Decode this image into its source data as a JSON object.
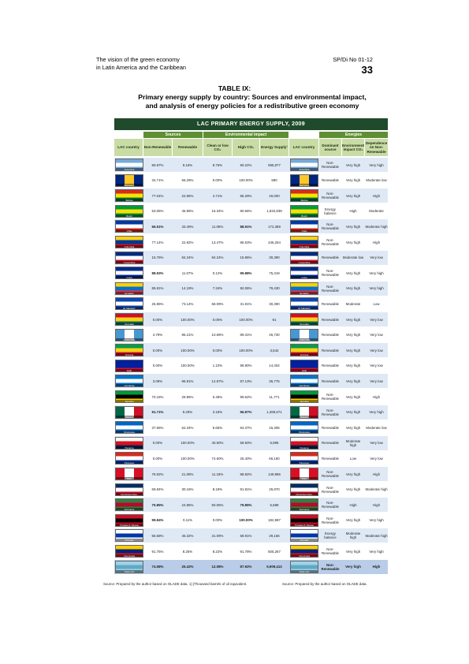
{
  "header": {
    "left_line1": "The vision of the green economy",
    "left_line2": "in Latin America and the Caribbean",
    "right": "SP/Di No 01-12",
    "page": "33"
  },
  "table": {
    "label": "TABLE IX:",
    "caption_line1": "Primary energy supply by country: Sources and environmental impact,",
    "caption_line2": "and analysis of energy policies for a redistributive green economy"
  },
  "figure": {
    "banner": "LAC PRIMARY ENERGY SUPPLY, 2009",
    "groups": {
      "sources": "Sources",
      "environmental": "Environmental impact",
      "energies": "Energies"
    },
    "columns": {
      "country": "LAC country",
      "nonrenew": "Non-Renewable",
      "renew": "Renewable",
      "clean": "Clean or low CO₂",
      "highco2": "High CO₂",
      "supply": "Energy Supply¹",
      "country2": "LAC country",
      "dominant": "Dominant source",
      "envimpact": "Environment impact CO₂",
      "dependence": "Dependence on Non-Renewable"
    },
    "colors": {
      "banner": "#1f4a2b",
      "group_header": "#5f8f34",
      "column_header": "#c9dca6",
      "row_a": "#dfe9f5",
      "row_b": "#ffffff"
    },
    "rows": [
      {
        "country": "Argentina",
        "flag": [
          "#75aadb",
          "#ffffff",
          "#75aadb"
        ],
        "nr": "90.87%",
        "r": "9.16%",
        "c": "9.76%",
        "h": "90.22%",
        "s": "595,877",
        "dom": "Non-Renewable",
        "env": "Very high",
        "dep": "Very high"
      },
      {
        "country": "Barbados",
        "flag": [
          "#00267f",
          "#ffc726",
          "#00267f"
        ],
        "vertical": true,
        "nr": "34.71%",
        "r": "66.29%",
        "c": "0.00%",
        "h": "100.00%",
        "s": "680",
        "dom": "Renewable",
        "env": "Very high",
        "dep": "Moderate low"
      },
      {
        "country": "Bolivia",
        "flag": [
          "#d52b1e",
          "#f9e300",
          "#007934"
        ],
        "nr": "77.04%",
        "r": "22.96%",
        "c": "4.71%",
        "h": "95.29%",
        "s": "40,000",
        "dom": "Non-Renewable",
        "env": "Very high",
        "dep": "High"
      },
      {
        "country": "Brazil",
        "flag": [
          "#009c3b",
          "#ffdf00",
          "#009c3b"
        ],
        "nr": "53.05%",
        "r": "46.95%",
        "c": "15.34%",
        "h": "80.66%",
        "s": "1,922,839",
        "dom": "Energy balance",
        "env": "High",
        "dep": "Moderate"
      },
      {
        "country": "Chile",
        "flag": [
          "#0039a6",
          "#ffffff",
          "#d52b1e"
        ],
        "nr": "66.51%",
        "r": "33.49%",
        "c": "11.09%",
        "h": "88.91%",
        "s": "172,389",
        "dom": "Non-Renewable",
        "env": "Very high",
        "dep": "Moderate high"
      },
      {
        "country": "Colombia",
        "flag": [
          "#fcd116",
          "#003893",
          "#ce1126"
        ],
        "nr": "77.14%",
        "r": "22.82%",
        "c": "13.47%",
        "h": "86.53%",
        "s": "246,264",
        "dom": "Non-Renewable",
        "env": "Very high",
        "dep": "High"
      },
      {
        "country": "Costa Rica",
        "flag": [
          "#002b7f",
          "#ffffff",
          "#ce1126"
        ],
        "nr": "15.76%",
        "r": "84.24%",
        "c": "84.24%",
        "h": "15.86%",
        "s": "30,390",
        "dom": "Renewable",
        "env": "Moderate low",
        "dep": "Very low"
      },
      {
        "country": "Cuba",
        "flag": [
          "#002a8f",
          "#ffffff",
          "#002a8f"
        ],
        "nr": "88.93%",
        "r": "11.07%",
        "c": "0.12%",
        "h": "99.88%",
        "s": "75,319",
        "dom": "Non-Renewable",
        "env": "Very high",
        "dep": "Very high"
      },
      {
        "country": "Ecuador",
        "flag": [
          "#ffd100",
          "#0072ce",
          "#ef3340"
        ],
        "nr": "85.81%",
        "r": "14.19%",
        "c": "7.34%",
        "h": "92.06%",
        "s": "79,430",
        "dom": "Non-Renewable",
        "env": "Very high",
        "dep": "Very high"
      },
      {
        "country": "El Salvador",
        "flag": [
          "#0f47af",
          "#ffffff",
          "#0f47af"
        ],
        "nr": "26.86%",
        "r": "73.14%",
        "c": "68.09%",
        "h": "31.91%",
        "s": "30,390",
        "dom": "Renewable",
        "env": "Moderate",
        "dep": "Low"
      },
      {
        "country": "Grenada",
        "flag": [
          "#ce1126",
          "#fcd116",
          "#007a5e"
        ],
        "nr": "0.00%",
        "r": "100.00%",
        "c": "0.00%",
        "h": "100.00%",
        "s": "91",
        "dom": "Renewable",
        "env": "Very high",
        "dep": "Very low"
      },
      {
        "country": "Guatemala",
        "flag": [
          "#4997d0",
          "#ffffff",
          "#4997d0"
        ],
        "vertical": true,
        "nr": "4.79%",
        "r": "95.21%",
        "c": "10.69%",
        "h": "89.31%",
        "s": "46,730",
        "dom": "Renewable",
        "env": "Very high",
        "dep": "Very low"
      },
      {
        "country": "Guyana",
        "flag": [
          "#009e49",
          "#fcd116",
          "#ce1126"
        ],
        "nr": "0.00%",
        "r": "100.00%",
        "c": "0.00%",
        "h": "100.00%",
        "s": "3,542",
        "dom": "Renewable",
        "env": "Very high",
        "dep": "Very low"
      },
      {
        "country": "Haiti",
        "flag": [
          "#00209f",
          "#00209f",
          "#d21034"
        ],
        "nr": "0.00%",
        "r": "100.00%",
        "c": "1.10%",
        "h": "98.90%",
        "s": "14,404",
        "dom": "Renewable",
        "env": "Very high",
        "dep": "Very low"
      },
      {
        "country": "Honduras",
        "flag": [
          "#0073cf",
          "#ffffff",
          "#0073cf"
        ],
        "nr": "3.09%",
        "r": "96.91%",
        "c": "12.87%",
        "h": "87.13%",
        "s": "36,775",
        "dom": "Renewable",
        "env": "Very high",
        "dep": "Very low"
      },
      {
        "country": "Jamaica",
        "flag": [
          "#009b3a",
          "#000000",
          "#fed100"
        ],
        "nr": "70.15%",
        "r": "29.85%",
        "c": "0.48%",
        "h": "99.52%",
        "s": "11,771",
        "dom": "Non-Renewable",
        "env": "Very high",
        "dep": "High"
      },
      {
        "country": "Mexico",
        "flag": [
          "#006847",
          "#ffffff",
          "#ce1126"
        ],
        "vertical": true,
        "nr": "91.71%",
        "r": "8.29%",
        "c": "3.18%",
        "h": "96.87%",
        "s": "1,369,671",
        "dom": "Non-Renewable",
        "env": "Very high",
        "dep": "Very high"
      },
      {
        "country": "Nicaragua",
        "flag": [
          "#0067c6",
          "#ffffff",
          "#0067c6"
        ],
        "nr": "37.66%",
        "r": "62.34%",
        "c": "5.65%",
        "h": "94.37%",
        "s": "15,306",
        "dom": "Renewable",
        "env": "Very high",
        "dep": "Moderate low"
      },
      {
        "country": "Panama",
        "flag": [
          "#ffffff",
          "#da121a",
          "#072357"
        ],
        "nr": "0.00%",
        "r": "100.00%",
        "c": "40.50%",
        "h": "59.50%",
        "s": "5,995",
        "dom": "Renewable",
        "env": "Moderate high",
        "dep": "Very low"
      },
      {
        "country": "Paraguay",
        "flag": [
          "#d52b1e",
          "#ffffff",
          "#0038a8"
        ],
        "nr": "0.00%",
        "r": "100.00%",
        "c": "74.60%",
        "h": "25.40%",
        "s": "66,160",
        "dom": "Renewable",
        "env": "Low",
        "dep": "Very low"
      },
      {
        "country": "Peru",
        "flag": [
          "#d91023",
          "#ffffff",
          "#d91023"
        ],
        "vertical": true,
        "nr": "78.92%",
        "r": "21.08%",
        "c": "11.18%",
        "h": "88.82%",
        "s": "149,986",
        "dom": "Non-Renewable",
        "env": "Very high",
        "dep": "High"
      },
      {
        "country": "Dominican Rep.",
        "flag": [
          "#002d62",
          "#ffffff",
          "#ce1126"
        ],
        "nr": "69.84%",
        "r": "30.16%",
        "c": "8.19%",
        "h": "91.81%",
        "s": "26,970",
        "dom": "Non-Renewable",
        "env": "Very high",
        "dep": "Moderate high"
      },
      {
        "country": "Suriname",
        "flag": [
          "#377e3f",
          "#b40a2d",
          "#377e3f"
        ],
        "nr": "75.85%",
        "r": "24.85%",
        "c": "50.05%",
        "h": "79.85%",
        "s": "5,688",
        "dom": "Non-Renewable",
        "env": "High",
        "dep": "High"
      },
      {
        "country": "Trinidad & Tobago",
        "flag": [
          "#ce1126",
          "#000000",
          "#ce1126"
        ],
        "nr": "99.84%",
        "r": "0.11%",
        "c": "0.00%",
        "h": "100.00%",
        "s": "182,987",
        "dom": "Non-Renewable",
        "env": "Very high",
        "dep": "Very high"
      },
      {
        "country": "Uruguay",
        "flag": [
          "#ffffff",
          "#0038a8",
          "#ffffff"
        ],
        "nr": "56.68%",
        "r": "45.32%",
        "c": "31.09%",
        "h": "68.91%",
        "s": "29,166",
        "dom": "Energy balance",
        "env": "Moderate high",
        "dep": "Moderate high"
      },
      {
        "country": "Venezuela",
        "flag": [
          "#ffcc00",
          "#00247d",
          "#cf142b"
        ],
        "nr": "91.75%",
        "r": "8.25%",
        "c": "8.22%",
        "h": "91.78%",
        "s": "505,267",
        "dom": "Non-Renewable",
        "env": "Very high",
        "dep": "Very high"
      },
      {
        "country": "Total LAC",
        "flag": [
          "#9fd3e6",
          "#62a8c7",
          "#9fd3e6"
        ],
        "total": true,
        "nr": "74.58%",
        "r": "25.42%",
        "c": "12.08%",
        "h": "87.92%",
        "s": "5,909,413",
        "dom": "Non-Renewable",
        "env": "Very high",
        "dep": "High"
      }
    ]
  },
  "footnotes": {
    "left": "Source: Prepared by the author based on OLADE data.   1) [Thousand barrels of oil equivalent.",
    "right": "Source: Prepared by the author based on OLADE data."
  }
}
